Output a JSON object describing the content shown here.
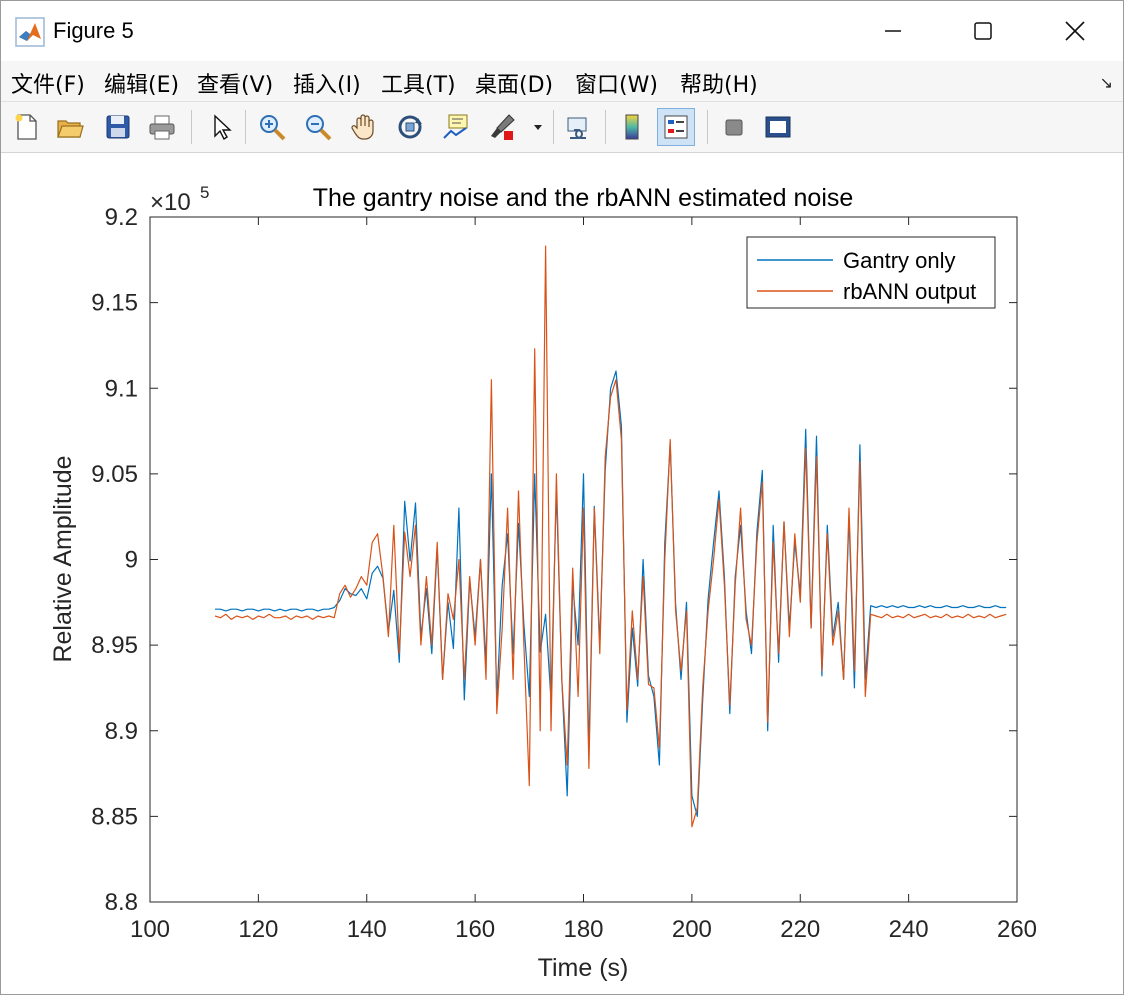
{
  "window": {
    "title": "Figure 5"
  },
  "menu": [
    "文件(F)",
    "编辑(E)",
    "查看(V)",
    "插入(I)",
    "工具(T)",
    "桌面(D)",
    "窗口(W)",
    "帮助(H)"
  ],
  "toolbar": {
    "buttons": [
      "new-figure",
      "open-file",
      "save",
      "print",
      "edit-plot",
      "zoom-in",
      "zoom-out",
      "pan",
      "rotate-3d",
      "data-cursor",
      "brush",
      "brush-dropdown",
      "link-plot",
      "insert-colorbar",
      "insert-legend",
      "hide-plot-tools",
      "show-plot-tools"
    ]
  },
  "chart_data": {
    "type": "line",
    "title": "The gantry noise and the rbANN estimated noise",
    "xlabel": "Time (s)",
    "ylabel": "Relative Amplitude",
    "y_multiplier": "×10",
    "y_exponent": "5",
    "xlim": [
      100,
      260
    ],
    "ylim": [
      8.8,
      9.2
    ],
    "xticks": [
      "100",
      "120",
      "140",
      "160",
      "180",
      "200",
      "220",
      "240",
      "260"
    ],
    "yticks": [
      "8.8",
      "8.85",
      "8.9",
      "8.95",
      "9",
      "9.05",
      "9.1",
      "9.15",
      "9.2"
    ],
    "legend_position": "top-right",
    "series": [
      {
        "name": "Gantry only",
        "color": "#0072BD",
        "x": [
          112,
          113,
          114,
          115,
          116,
          117,
          118,
          119,
          120,
          121,
          122,
          123,
          124,
          125,
          126,
          127,
          128,
          129,
          130,
          131,
          132,
          133,
          134,
          135,
          136,
          137,
          138,
          139,
          140,
          141,
          142,
          143,
          144,
          145,
          146,
          147,
          148,
          149,
          150,
          151,
          152,
          153,
          154,
          155,
          156,
          157,
          158,
          159,
          160,
          161,
          162,
          163,
          164,
          165,
          166,
          167,
          168,
          169,
          170,
          171,
          172,
          173,
          174,
          175,
          176,
          177,
          178,
          179,
          180,
          181,
          182,
          183,
          184,
          185,
          186,
          187,
          188,
          189,
          190,
          191,
          192,
          193,
          194,
          195,
          196,
          197,
          198,
          199,
          200,
          201,
          202,
          203,
          204,
          205,
          206,
          207,
          208,
          209,
          210,
          211,
          212,
          213,
          214,
          215,
          216,
          217,
          218,
          219,
          220,
          221,
          222,
          223,
          224,
          225,
          226,
          227,
          228,
          229,
          230,
          231,
          232,
          233,
          234,
          235,
          236,
          237,
          238,
          239,
          240,
          241,
          242,
          243,
          244,
          245,
          246,
          247,
          248,
          249,
          250,
          251,
          252,
          253,
          254,
          255,
          256,
          257,
          258
        ],
        "y": [
          8.971,
          8.971,
          8.97,
          8.971,
          8.971,
          8.97,
          8.971,
          8.971,
          8.97,
          8.971,
          8.971,
          8.97,
          8.971,
          8.97,
          8.971,
          8.971,
          8.97,
          8.971,
          8.971,
          8.97,
          8.971,
          8.971,
          8.972,
          8.976,
          8.983,
          8.98,
          8.979,
          8.983,
          8.977,
          8.992,
          8.996,
          8.989,
          8.958,
          8.982,
          8.94,
          9.034,
          8.999,
          9.033,
          8.955,
          8.983,
          8.945,
          9.007,
          8.93,
          8.975,
          8.948,
          9.03,
          8.918,
          8.988,
          8.955,
          9.0,
          8.94,
          9.05,
          8.918,
          8.985,
          9.015,
          8.945,
          9.021,
          8.962,
          8.92,
          9.05,
          8.946,
          8.968,
          8.918,
          9.041,
          8.93,
          8.862,
          8.985,
          8.95,
          9.05,
          8.888,
          9.031,
          8.951,
          9.052,
          9.1,
          9.11,
          9.078,
          8.905,
          8.96,
          8.926,
          9.0,
          8.932,
          8.92,
          8.88,
          9.01,
          9.068,
          8.974,
          8.93,
          8.975,
          8.862,
          8.85,
          8.918,
          8.977,
          9.01,
          9.04,
          8.99,
          8.91,
          8.99,
          9.02,
          8.97,
          8.945,
          9.016,
          9.052,
          8.9,
          9.02,
          8.94,
          9.022,
          8.96,
          9.01,
          8.98,
          9.076,
          8.96,
          9.072,
          8.932,
          9.02,
          8.955,
          8.975,
          8.93,
          9.025,
          8.925,
          9.067,
          8.93,
          8.973,
          8.972,
          8.973,
          8.972,
          8.973,
          8.972,
          8.973,
          8.972,
          8.972,
          8.973,
          8.972,
          8.973,
          8.972,
          8.972,
          8.973,
          8.972,
          8.972,
          8.973,
          8.972,
          8.972,
          8.973,
          8.972,
          8.972,
          8.973,
          8.972,
          8.972
        ]
      },
      {
        "name": "rbANN output",
        "color": "#D95319",
        "x": [
          112,
          113,
          114,
          115,
          116,
          117,
          118,
          119,
          120,
          121,
          122,
          123,
          124,
          125,
          126,
          127,
          128,
          129,
          130,
          131,
          132,
          133,
          134,
          135,
          136,
          137,
          138,
          139,
          140,
          141,
          142,
          143,
          144,
          145,
          146,
          147,
          148,
          149,
          150,
          151,
          152,
          153,
          154,
          155,
          156,
          157,
          158,
          159,
          160,
          161,
          162,
          163,
          164,
          165,
          166,
          167,
          168,
          169,
          170,
          171,
          172,
          173,
          174,
          175,
          176,
          177,
          178,
          179,
          180,
          181,
          182,
          183,
          184,
          185,
          186,
          187,
          188,
          189,
          190,
          191,
          192,
          193,
          194,
          195,
          196,
          197,
          198,
          199,
          200,
          201,
          202,
          203,
          204,
          205,
          206,
          207,
          208,
          209,
          210,
          211,
          212,
          213,
          214,
          215,
          216,
          217,
          218,
          219,
          220,
          221,
          222,
          223,
          224,
          225,
          226,
          227,
          228,
          229,
          230,
          231,
          232,
          233,
          234,
          235,
          236,
          237,
          238,
          239,
          240,
          241,
          242,
          243,
          244,
          245,
          246,
          247,
          248,
          249,
          250,
          251,
          252,
          253,
          254,
          255,
          256,
          257,
          258
        ],
        "y": [
          8.967,
          8.966,
          8.968,
          8.965,
          8.967,
          8.966,
          8.967,
          8.965,
          8.967,
          8.966,
          8.968,
          8.966,
          8.966,
          8.967,
          8.965,
          8.967,
          8.966,
          8.967,
          8.965,
          8.967,
          8.966,
          8.967,
          8.966,
          8.98,
          8.985,
          8.978,
          8.983,
          8.99,
          8.985,
          9.01,
          9.015,
          8.99,
          8.955,
          9.02,
          8.945,
          9.016,
          8.99,
          9.02,
          8.95,
          8.99,
          8.95,
          9.01,
          8.93,
          8.98,
          8.965,
          9.0,
          8.93,
          8.99,
          8.95,
          9.0,
          8.93,
          9.105,
          8.91,
          8.96,
          9.03,
          8.93,
          9.04,
          8.95,
          8.868,
          9.123,
          8.9,
          9.183,
          8.9,
          9.05,
          8.93,
          8.88,
          8.995,
          8.92,
          9.03,
          8.878,
          9.03,
          8.945,
          9.06,
          9.095,
          9.105,
          9.07,
          8.912,
          8.97,
          8.93,
          8.99,
          8.927,
          8.925,
          8.89,
          9.0,
          9.07,
          8.97,
          8.935,
          8.97,
          8.844,
          8.855,
          8.925,
          8.97,
          9.0,
          9.035,
          8.985,
          8.915,
          8.985,
          9.03,
          8.965,
          8.95,
          9.01,
          9.045,
          8.905,
          9.01,
          8.945,
          9.022,
          8.955,
          9.015,
          8.975,
          9.065,
          8.96,
          9.06,
          8.935,
          9.015,
          8.95,
          8.97,
          8.93,
          9.03,
          8.935,
          9.057,
          8.92,
          8.968,
          8.967,
          8.966,
          8.968,
          8.966,
          8.967,
          8.966,
          8.968,
          8.966,
          8.967,
          8.968,
          8.966,
          8.967,
          8.966,
          8.968,
          8.966,
          8.967,
          8.966,
          8.968,
          8.966,
          8.967,
          8.966,
          8.968,
          8.966,
          8.967,
          8.968
        ]
      }
    ]
  }
}
